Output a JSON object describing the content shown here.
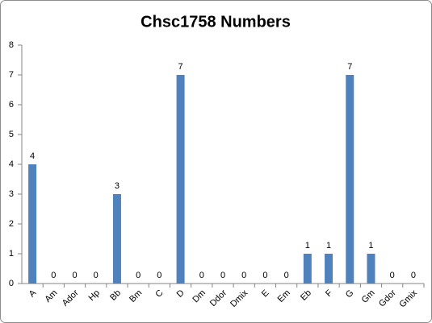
{
  "chart_data": {
    "type": "bar",
    "title": "Chsc1758 Numbers",
    "categories": [
      "A",
      "Am",
      "Ador",
      "Hp",
      "Bb",
      "Bm",
      "C",
      "D",
      "Dm",
      "Ddor",
      "Dmix",
      "E",
      "Em",
      "Eb",
      "F",
      "G",
      "Gm",
      "Gdor",
      "Gmix"
    ],
    "values": [
      4,
      0,
      0,
      0,
      3,
      0,
      0,
      7,
      0,
      0,
      0,
      0,
      0,
      1,
      1,
      7,
      1,
      0,
      0
    ],
    "color": "#4f81bd",
    "ylim": [
      0,
      8
    ],
    "yticks": [
      0,
      1,
      2,
      3,
      4,
      5,
      6,
      7,
      8
    ],
    "grid": false
  }
}
